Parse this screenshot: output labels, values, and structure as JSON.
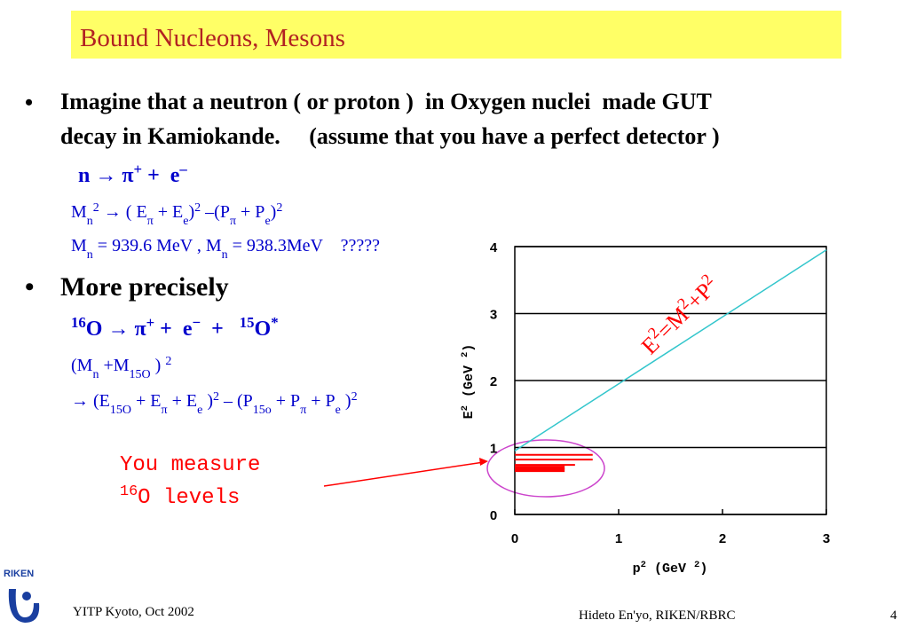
{
  "title": "Bound Nucleons, Mesons",
  "bullets": [
    {
      "lines": [
        "Imagine that a neutron ( or proton )  in Oxygen nuclei  made GUT",
        "decay in Kamiokande.     (assume that you have a perfect detector )"
      ]
    },
    {
      "lines": [
        "More precisely"
      ]
    }
  ],
  "formulas": [
    [
      {
        "text": "n → π"
      },
      {
        "text": "+",
        "pos": "sup"
      },
      {
        "text": " +  e"
      },
      {
        "text": "–",
        "pos": "sup"
      }
    ],
    [
      {
        "text": "M"
      },
      {
        "text": "n",
        "pos": "sub"
      },
      {
        "text": "2",
        "pos": "sup"
      },
      {
        "text": " → ( E"
      },
      {
        "text": "π",
        "pos": "sub"
      },
      {
        "text": " + E"
      },
      {
        "text": "e",
        "pos": "sub"
      },
      {
        "text": ")"
      },
      {
        "text": "2",
        "pos": "sup"
      },
      {
        "text": " –(P"
      },
      {
        "text": "π",
        "pos": "sub"
      },
      {
        "text": " + P"
      },
      {
        "text": "e",
        "pos": "sub"
      },
      {
        "text": ")"
      },
      {
        "text": "2",
        "pos": "sup"
      }
    ],
    [
      {
        "text": "M"
      },
      {
        "text": "n",
        "pos": "sub"
      },
      {
        "text": " = 939.6 MeV , M"
      },
      {
        "text": "n",
        "pos": "sub"
      },
      {
        "text": " = 938.3MeV    ?????"
      }
    ],
    [
      {
        "text": "16",
        "pos": "sup"
      },
      {
        "text": "O → π"
      },
      {
        "text": "+",
        "pos": "sup"
      },
      {
        "text": " +  e"
      },
      {
        "text": "−",
        "pos": "sup"
      },
      {
        "text": "  +   "
      },
      {
        "text": "15",
        "pos": "sup"
      },
      {
        "text": "O"
      },
      {
        "text": "*",
        "pos": "sup"
      }
    ],
    [
      {
        "text": "(M"
      },
      {
        "text": "n",
        "pos": "sub"
      },
      {
        "text": " +M"
      },
      {
        "text": "15O",
        "pos": "sub"
      },
      {
        "text": " ) "
      },
      {
        "text": "2",
        "pos": "sup"
      }
    ],
    [
      {
        "text": "→ (E"
      },
      {
        "text": "15O",
        "pos": "sub"
      },
      {
        "text": " + E"
      },
      {
        "text": "π",
        "pos": "sub"
      },
      {
        "text": " + E"
      },
      {
        "text": "e",
        "pos": "sub"
      },
      {
        "text": " )"
      },
      {
        "text": "2",
        "pos": "sup"
      },
      {
        "text": " – (P"
      },
      {
        "text": "15o",
        "pos": "sub"
      },
      {
        "text": " + P"
      },
      {
        "text": "π",
        "pos": "sub"
      },
      {
        "text": " + P"
      },
      {
        "text": "e",
        "pos": "sub"
      },
      {
        "text": " )"
      },
      {
        "text": "2",
        "pos": "sup"
      }
    ]
  ],
  "note": [
    [
      {
        "text": "You measure"
      }
    ],
    [
      {
        "text": "16",
        "pos": "sup"
      },
      {
        "text": "O levels"
      }
    ]
  ],
  "chart": {
    "xlim": [
      0,
      3
    ],
    "ylim": [
      0,
      4
    ],
    "xticks": [
      0,
      1,
      2,
      3
    ],
    "yticks": [
      0,
      1,
      2,
      3,
      4
    ],
    "grid": true,
    "xlabel": [
      {
        "text": "p"
      },
      {
        "text": "2",
        "pos": "sup"
      },
      {
        "text": " (GeV "
      },
      {
        "text": "2",
        "pos": "sup"
      },
      {
        "text": ")"
      }
    ],
    "ylabel": [
      {
        "text": "E"
      },
      {
        "text": "2",
        "pos": "sup"
      },
      {
        "text": " (GeV "
      },
      {
        "text": "2",
        "pos": "sup"
      },
      {
        "text": ")"
      }
    ],
    "annotation": [
      {
        "text": "E"
      },
      {
        "text": "2",
        "pos": "sup"
      },
      {
        "text": "=M"
      },
      {
        "text": "2",
        "pos": "sup"
      },
      {
        "text": "+P"
      },
      {
        "text": "2",
        "pos": "sup"
      }
    ],
    "line": {
      "x": [
        0,
        3
      ],
      "y": [
        0.95,
        3.95
      ],
      "color": "#33c6cc"
    },
    "levels": {
      "color": "#ff0000",
      "y": [
        0.89,
        0.82,
        0.74,
        0.7,
        0.66
      ],
      "x_end": [
        0.75,
        0.75,
        0.58,
        0.48,
        0.48
      ]
    }
  },
  "footer": {
    "left": "YITP Kyoto, Oct 2002",
    "center": "Hideto En'yo, RIKEN/RBRC",
    "page": "4"
  },
  "logo": "RIKEN"
}
